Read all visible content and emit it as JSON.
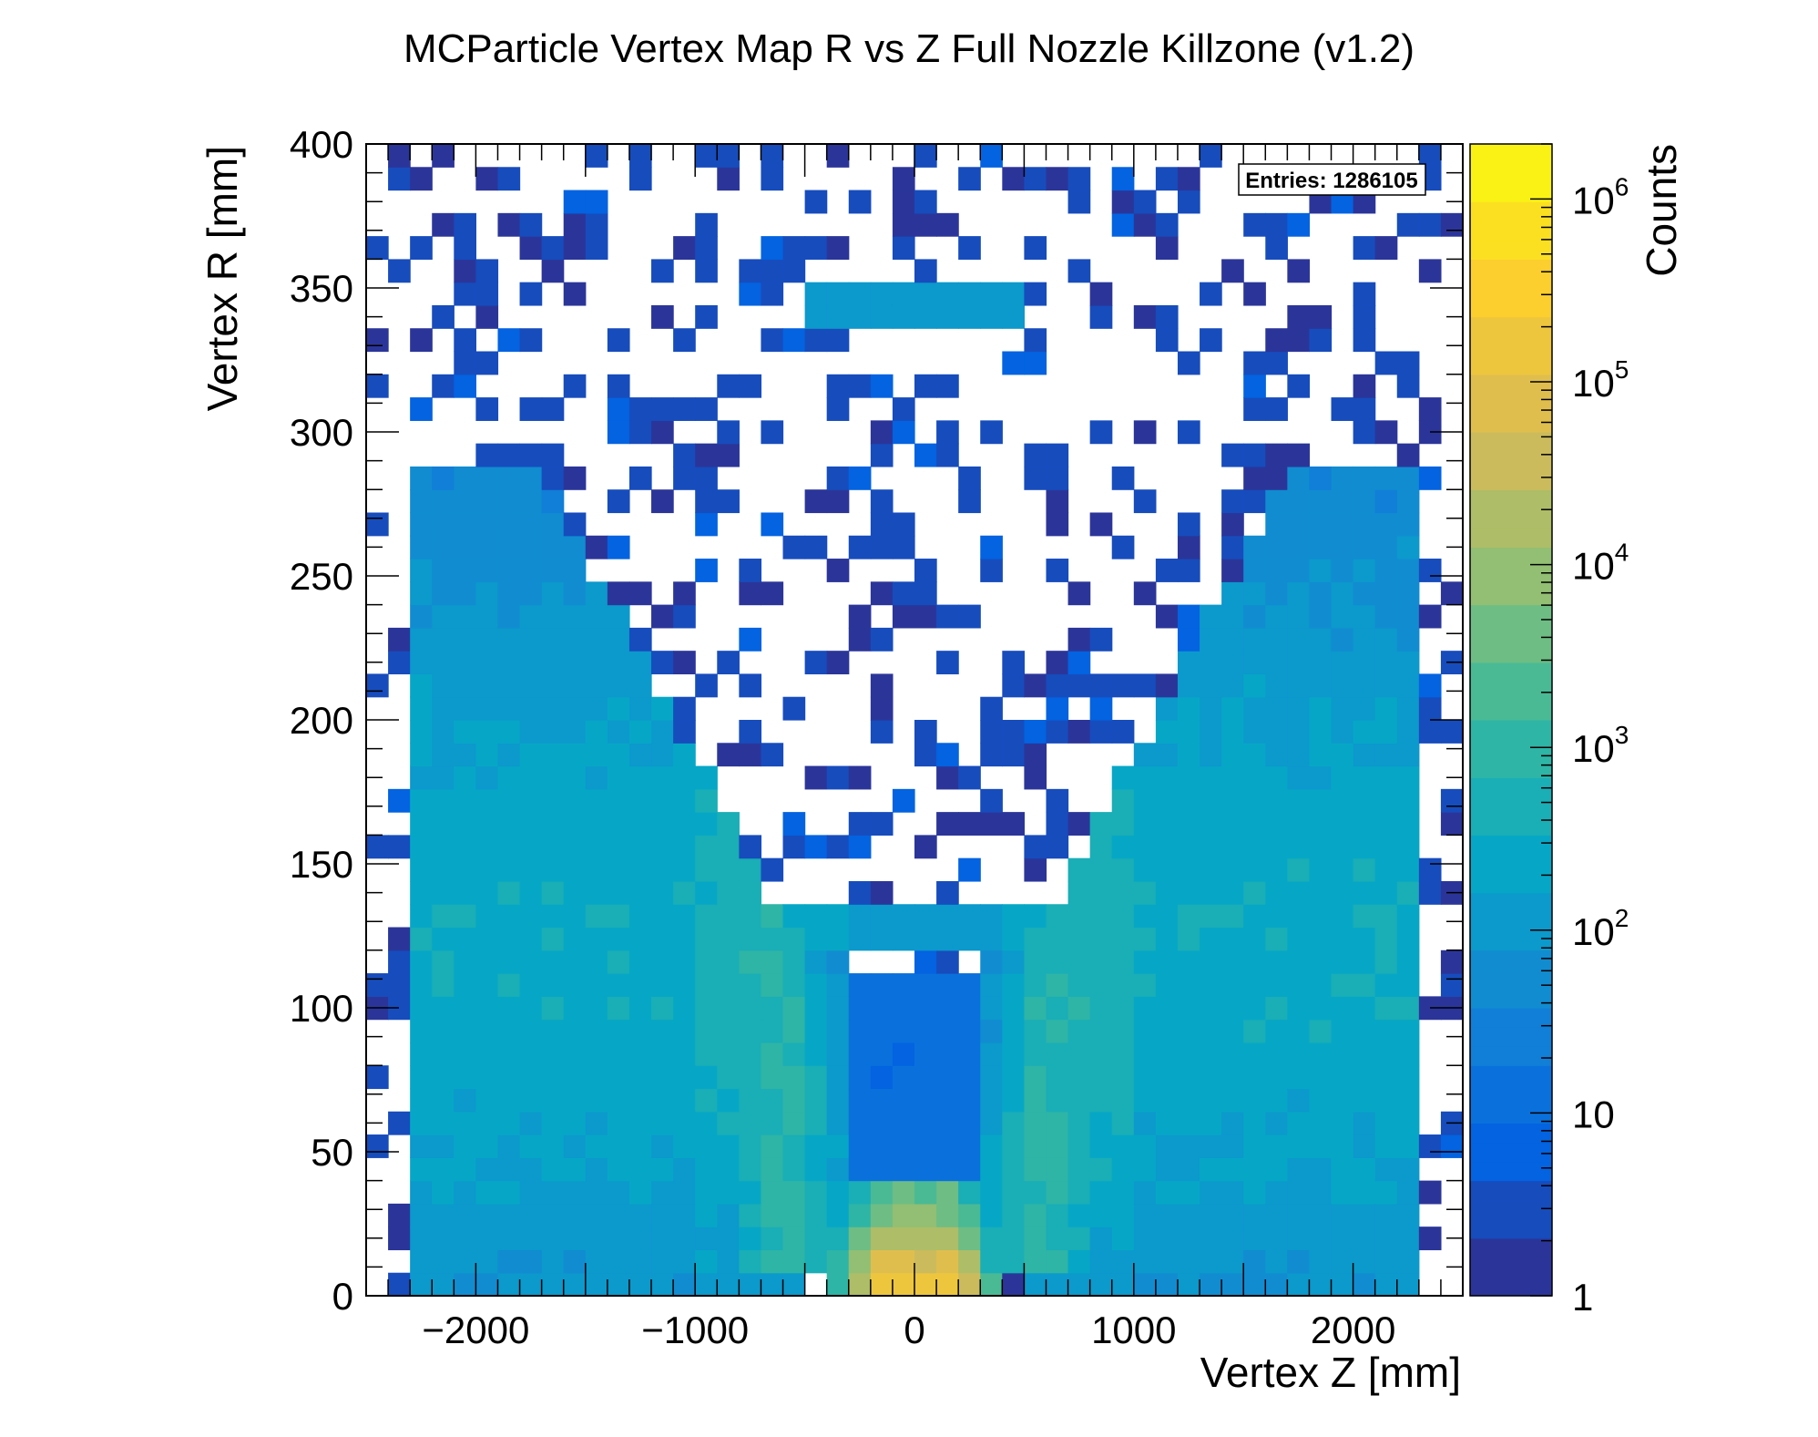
{
  "chart_data": {
    "type": "heatmap",
    "title": "MCParticle Vertex Map R vs Z Full Nozzle Killzone (v1.2)",
    "xlabel": "Vertex Z [mm]",
    "ylabel": "Vertex R [mm]",
    "zlabel": "Counts",
    "xlim": [
      -2500,
      2500
    ],
    "ylim": [
      0,
      400
    ],
    "zlim": [
      1,
      2000000
    ],
    "zscale": "log",
    "x_ticks": [
      -2000,
      -1000,
      0,
      1000,
      2000
    ],
    "x_tick_labels": [
      "−2000",
      "−1000",
      "0",
      "1000",
      "2000"
    ],
    "y_ticks": [
      0,
      50,
      100,
      150,
      200,
      250,
      300,
      350,
      400
    ],
    "y_tick_labels": [
      "0",
      "50",
      "100",
      "150",
      "200",
      "250",
      "300",
      "350",
      "400"
    ],
    "z_tick_labels": [
      {
        "value": 1,
        "base": "1",
        "exp": ""
      },
      {
        "value": 10,
        "base": "10",
        "exp": ""
      },
      {
        "value": 100,
        "base": "10",
        "exp": "2"
      },
      {
        "value": 1000,
        "base": "10",
        "exp": "3"
      },
      {
        "value": 10000,
        "base": "10",
        "exp": "4"
      },
      {
        "value": 100000,
        "base": "10",
        "exp": "5"
      },
      {
        "value": 1000000,
        "base": "10",
        "exp": "6"
      }
    ],
    "stats": {
      "entries_label": "Entries: 1286105",
      "entries": 1286105
    },
    "bins": {
      "nx": 50,
      "ny": 50,
      "x_min": -2500,
      "x_max": 2500,
      "y_min": 0,
      "y_max": 400
    },
    "data_summary": "Counts are concentrated near R<40 mm around Z=0 (peak ~1e5-1e6 per bin at |Z|~100 mm); two hollow V-shaped wings of 10-1000 counts extend outward to |Z|~2300 mm up to R~290 mm; a band of ~100 counts at R~125-130 mm and R~340-350 mm for |Z|<500 mm; sparse 1-10 count bins fill the rest.",
    "palette": [
      "#352a87",
      "#0363e1",
      "#1485d4",
      "#06a7c6",
      "#38b99e",
      "#92bf73",
      "#d9ba56",
      "#fcce2e",
      "#f9fb0e"
    ]
  }
}
